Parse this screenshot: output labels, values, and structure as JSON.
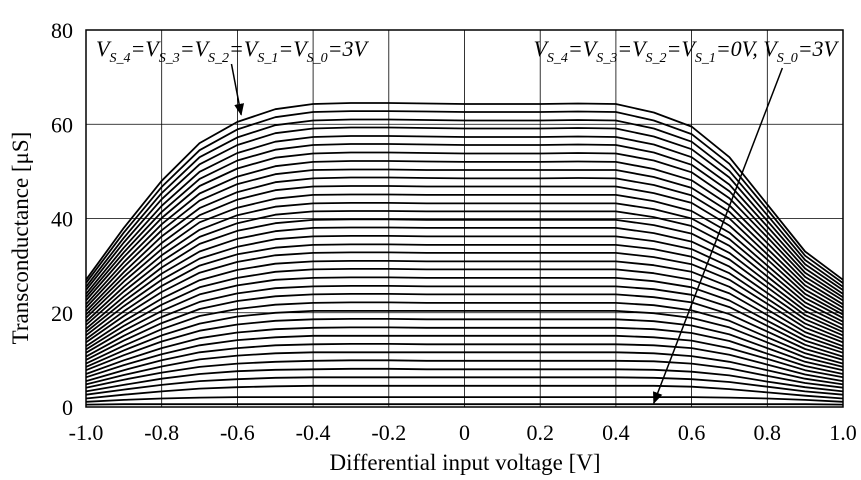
{
  "chart_data": {
    "type": "line",
    "xlabel": "Differential input voltage [V]",
    "ylabel": "Transconductance [μS]",
    "xlim": [
      -1.0,
      1.0
    ],
    "ylim": [
      0,
      80
    ],
    "x_ticks": [
      "-1.0",
      "-0.8",
      "-0.6",
      "-0.4",
      "-0.2",
      "0",
      "0.2",
      "0.4",
      "0.6",
      "0.8",
      "1.0"
    ],
    "x_tick_values": [
      -1.0,
      -0.8,
      -0.6,
      -0.4,
      -0.2,
      0,
      0.2,
      0.4,
      0.6,
      0.8,
      1.0
    ],
    "y_ticks": [
      "0",
      "20",
      "40",
      "60",
      "80"
    ],
    "y_tick_values": [
      0,
      20,
      40,
      60,
      80
    ],
    "grid": true,
    "x": [
      -1.0,
      -0.9,
      -0.8,
      -0.7,
      -0.6,
      -0.5,
      -0.4,
      -0.3,
      -0.2,
      -0.1,
      0.0,
      0.1,
      0.2,
      0.3,
      0.4,
      0.5,
      0.6,
      0.7,
      0.8,
      0.9,
      1.0
    ],
    "series": [
      {
        "values": [
          27.0,
          38.0,
          48.0,
          56.0,
          60.5,
          63.2,
          64.3,
          64.5,
          64.5,
          64.4,
          64.3,
          64.3,
          64.3,
          64.4,
          64.3,
          62.5,
          59.5,
          53.0,
          43.0,
          33.0,
          27.0
        ]
      },
      {
        "values": [
          26.3,
          37.0,
          46.7,
          54.5,
          58.9,
          61.5,
          62.6,
          62.8,
          62.8,
          62.7,
          62.6,
          62.6,
          62.6,
          62.7,
          62.6,
          60.8,
          57.9,
          51.6,
          41.9,
          32.1,
          26.3
        ]
      },
      {
        "values": [
          25.5,
          35.9,
          45.4,
          53.0,
          57.2,
          59.8,
          60.8,
          61.0,
          61.0,
          60.9,
          60.8,
          60.8,
          60.8,
          60.9,
          60.8,
          59.1,
          56.3,
          50.1,
          40.7,
          31.2,
          25.5
        ]
      },
      {
        "values": [
          24.8,
          34.9,
          44.1,
          51.5,
          55.6,
          58.1,
          59.1,
          59.3,
          59.3,
          59.2,
          59.1,
          59.1,
          59.1,
          59.2,
          59.1,
          57.4,
          54.7,
          48.7,
          39.5,
          30.3,
          24.8
        ]
      },
      {
        "values": [
          24.0,
          33.8,
          42.7,
          49.9,
          53.9,
          56.3,
          57.3,
          57.5,
          57.5,
          57.4,
          57.3,
          57.3,
          57.3,
          57.4,
          57.3,
          55.7,
          53.0,
          47.2,
          38.3,
          29.4,
          24.0
        ]
      },
      {
        "values": [
          23.3,
          32.8,
          41.4,
          48.4,
          52.3,
          54.6,
          55.6,
          55.8,
          55.8,
          55.7,
          55.6,
          55.6,
          55.6,
          55.7,
          55.6,
          54.0,
          51.4,
          45.8,
          37.1,
          28.5,
          23.3
        ]
      },
      {
        "values": [
          22.6,
          31.8,
          40.1,
          46.9,
          50.6,
          52.9,
          53.8,
          54.0,
          54.0,
          53.9,
          53.8,
          53.8,
          53.8,
          53.9,
          53.8,
          52.3,
          49.8,
          44.3,
          36.0,
          27.6,
          22.6
        ]
      },
      {
        "values": [
          21.8,
          30.7,
          38.8,
          45.3,
          48.9,
          51.1,
          52.0,
          52.2,
          52.2,
          52.1,
          52.0,
          52.0,
          52.0,
          52.1,
          52.0,
          50.5,
          48.1,
          42.8,
          34.8,
          26.7,
          21.8
        ]
      },
      {
        "values": [
          21.1,
          29.7,
          37.5,
          43.8,
          47.3,
          49.4,
          50.3,
          50.4,
          50.4,
          50.3,
          50.3,
          50.3,
          50.3,
          50.3,
          50.3,
          48.8,
          46.5,
          41.4,
          33.6,
          25.8,
          21.1
        ]
      },
      {
        "values": [
          20.3,
          28.6,
          36.2,
          42.2,
          45.6,
          47.7,
          48.5,
          48.7,
          48.7,
          48.6,
          48.5,
          48.5,
          48.5,
          48.6,
          48.5,
          47.1,
          44.9,
          40.0,
          32.4,
          24.9,
          20.3
        ]
      },
      {
        "values": [
          19.6,
          27.6,
          34.8,
          40.7,
          44.0,
          46.0,
          46.8,
          46.9,
          46.9,
          46.8,
          46.8,
          46.8,
          46.8,
          46.8,
          46.8,
          45.4,
          43.3,
          38.5,
          31.3,
          24.0,
          19.6
        ]
      },
      {
        "values": [
          18.9,
          26.6,
          33.5,
          39.2,
          42.3,
          44.2,
          45.0,
          45.1,
          45.1,
          45.0,
          45.0,
          45.0,
          45.0,
          45.0,
          45.0,
          43.7,
          41.6,
          37.0,
          30.0,
          23.1,
          18.9
        ]
      },
      {
        "values": [
          18.1,
          25.5,
          32.2,
          37.6,
          40.7,
          42.5,
          43.2,
          43.3,
          43.3,
          43.2,
          43.2,
          43.2,
          43.2,
          43.2,
          43.2,
          42.0,
          40.0,
          35.6,
          28.9,
          22.2,
          18.1
        ]
      },
      {
        "values": [
          17.4,
          24.5,
          30.9,
          36.1,
          39.0,
          40.8,
          41.5,
          41.6,
          41.6,
          41.5,
          41.5,
          41.5,
          41.5,
          41.5,
          41.5,
          40.3,
          38.4,
          34.2,
          27.7,
          21.3,
          17.4
        ]
      },
      {
        "values": [
          16.6,
          23.4,
          29.6,
          34.6,
          37.4,
          39.0,
          39.7,
          39.8,
          39.8,
          39.7,
          39.7,
          39.7,
          39.7,
          39.7,
          39.7,
          38.6,
          36.8,
          32.7,
          26.5,
          20.4,
          16.6
        ]
      },
      {
        "values": [
          15.9,
          22.4,
          28.3,
          33.0,
          35.7,
          37.3,
          38.0,
          38.1,
          38.1,
          38.0,
          38.0,
          38.0,
          38.0,
          38.0,
          38.0,
          36.9,
          35.1,
          31.3,
          25.4,
          19.5,
          15.9
        ]
      },
      {
        "values": [
          15.2,
          21.4,
          27.0,
          31.5,
          34.0,
          35.6,
          36.2,
          36.3,
          36.3,
          36.2,
          36.2,
          36.2,
          36.2,
          36.2,
          36.2,
          35.2,
          33.5,
          29.8,
          24.2,
          18.6,
          15.2
        ]
      },
      {
        "values": [
          14.4,
          20.3,
          25.7,
          30.0,
          32.4,
          33.8,
          34.4,
          34.5,
          34.5,
          34.4,
          34.4,
          34.4,
          34.4,
          34.4,
          34.4,
          33.5,
          31.9,
          28.4,
          23.0,
          17.7,
          14.4
        ]
      },
      {
        "values": [
          13.7,
          19.3,
          24.4,
          28.5,
          30.8,
          32.2,
          32.7,
          32.8,
          32.8,
          32.7,
          32.7,
          32.7,
          32.7,
          32.7,
          32.7,
          31.8,
          30.3,
          27.0,
          21.9,
          16.8,
          13.7
        ]
      },
      {
        "values": [
          12.9,
          18.2,
          23.0,
          26.9,
          29.1,
          30.4,
          30.9,
          31.0,
          31.0,
          30.9,
          30.9,
          30.9,
          30.9,
          30.9,
          30.9,
          30.1,
          28.7,
          25.5,
          20.7,
          15.9,
          12.9
        ]
      },
      {
        "values": [
          12.2,
          17.2,
          21.7,
          25.4,
          27.4,
          28.7,
          29.2,
          29.3,
          29.3,
          29.2,
          29.2,
          29.2,
          29.2,
          29.2,
          29.2,
          28.4,
          27.0,
          24.1,
          19.5,
          15.0,
          12.2
        ]
      },
      {
        "values": [
          11.5,
          16.2,
          20.4,
          23.9,
          25.8,
          27.0,
          27.4,
          27.5,
          27.5,
          27.4,
          27.4,
          27.4,
          27.4,
          27.4,
          27.4,
          26.7,
          25.4,
          22.6,
          18.3,
          14.1,
          11.5
        ]
      },
      {
        "values": [
          10.7,
          15.1,
          19.1,
          22.3,
          24.1,
          25.2,
          25.6,
          25.7,
          25.7,
          25.6,
          25.6,
          25.6,
          25.6,
          25.6,
          25.6,
          25.0,
          23.8,
          21.2,
          17.2,
          13.2,
          10.7
        ]
      },
      {
        "values": [
          10.0,
          14.1,
          17.8,
          20.8,
          22.5,
          23.5,
          23.9,
          24.0,
          24.0,
          23.9,
          23.9,
          23.9,
          23.9,
          23.9,
          23.9,
          23.3,
          22.2,
          19.7,
          16.0,
          12.3,
          10.0
        ]
      },
      {
        "values": [
          9.2,
          13.0,
          16.5,
          19.3,
          20.8,
          21.7,
          22.1,
          22.2,
          22.2,
          22.1,
          22.1,
          22.1,
          22.1,
          22.1,
          22.1,
          21.6,
          20.5,
          18.3,
          14.8,
          11.4,
          9.2
        ]
      },
      {
        "values": [
          8.5,
          12.0,
          15.2,
          17.7,
          19.2,
          20.0,
          20.4,
          20.4,
          20.4,
          20.4,
          20.4,
          20.4,
          20.4,
          20.4,
          20.4,
          19.9,
          18.9,
          16.9,
          13.7,
          10.5,
          8.5
        ]
      },
      {
        "values": [
          7.8,
          11.0,
          13.9,
          16.2,
          17.5,
          18.3,
          18.6,
          18.7,
          18.7,
          18.6,
          18.6,
          18.6,
          18.6,
          18.6,
          18.6,
          18.2,
          17.3,
          15.4,
          12.5,
          9.6,
          7.8
        ]
      },
      {
        "values": [
          7.0,
          9.9,
          12.5,
          14.6,
          15.8,
          16.5,
          16.8,
          16.9,
          16.9,
          16.8,
          16.8,
          16.8,
          16.8,
          16.8,
          16.8,
          16.5,
          15.7,
          14.0,
          11.3,
          8.7,
          7.0
        ]
      },
      {
        "values": [
          6.3,
          8.9,
          11.2,
          13.1,
          14.2,
          14.8,
          15.1,
          15.1,
          15.1,
          15.1,
          15.1,
          15.1,
          15.1,
          15.1,
          15.1,
          14.8,
          14.1,
          12.5,
          10.2,
          7.8,
          6.3
        ]
      },
      {
        "values": [
          5.5,
          7.8,
          9.9,
          11.6,
          12.5,
          13.1,
          13.3,
          13.4,
          13.4,
          13.3,
          13.3,
          13.3,
          13.3,
          13.3,
          13.3,
          13.1,
          12.5,
          11.1,
          9.0,
          6.9,
          5.5
        ]
      },
      {
        "values": [
          4.8,
          6.8,
          8.6,
          10.1,
          10.9,
          11.4,
          11.6,
          11.6,
          11.6,
          11.6,
          11.6,
          11.6,
          11.6,
          11.6,
          11.6,
          11.4,
          10.8,
          9.6,
          7.8,
          6.0,
          4.8
        ]
      },
      {
        "values": [
          4.1,
          5.8,
          7.3,
          8.5,
          9.2,
          9.6,
          9.8,
          9.9,
          9.9,
          9.8,
          9.8,
          9.8,
          9.8,
          9.8,
          9.8,
          9.7,
          9.2,
          8.2,
          6.6,
          5.1,
          4.1
        ]
      },
      {
        "values": [
          3.3,
          4.7,
          6.0,
          7.0,
          7.6,
          7.9,
          8.0,
          8.1,
          8.1,
          8.0,
          8.0,
          8.0,
          8.0,
          8.0,
          8.0,
          7.9,
          7.5,
          6.7,
          5.4,
          4.2,
          3.3
        ]
      },
      {
        "values": [
          2.6,
          3.7,
          4.7,
          5.5,
          5.9,
          6.2,
          6.3,
          6.3,
          6.3,
          6.3,
          6.3,
          6.3,
          6.3,
          6.3,
          6.3,
          6.2,
          5.9,
          5.3,
          4.3,
          3.3,
          2.6
        ]
      },
      {
        "values": [
          1.8,
          2.6,
          3.3,
          3.9,
          4.2,
          4.4,
          4.5,
          4.5,
          4.5,
          4.5,
          4.5,
          4.5,
          4.5,
          4.5,
          4.5,
          4.5,
          4.3,
          3.8,
          3.1,
          2.4,
          1.8
        ]
      },
      {
        "values": [
          1.1,
          1.5,
          1.8,
          2.0,
          2.1,
          2.1,
          2.1,
          2.1,
          2.1,
          2.1,
          2.1,
          2.1,
          2.1,
          2.1,
          2.1,
          2.1,
          2.1,
          2.0,
          1.8,
          1.5,
          1.1
        ]
      },
      {
        "values": [
          0.5,
          0.6,
          0.6,
          0.6,
          0.6,
          0.6,
          0.6,
          0.6,
          0.6,
          0.6,
          0.6,
          0.6,
          0.6,
          0.6,
          0.6,
          0.6,
          0.6,
          0.6,
          0.6,
          0.6,
          0.5
        ]
      }
    ],
    "annotations": [
      {
        "parts": [
          [
            "V",
            "S_4"
          ],
          [
            "=V",
            "S_3"
          ],
          [
            "=V",
            "S_2"
          ],
          [
            "=V",
            "S_1"
          ],
          [
            "=V",
            "S_0"
          ],
          [
            "=3V",
            ""
          ]
        ],
        "anchor": "top-left",
        "arrow_to": {
          "x": -0.59,
          "y": 62.0
        }
      },
      {
        "parts": [
          [
            "V",
            "S_4"
          ],
          [
            "=V",
            "S_3"
          ],
          [
            "=V",
            "S_2"
          ],
          [
            "=V",
            "S_1"
          ],
          [
            "=0V, V",
            "S_0"
          ],
          [
            "=3V",
            ""
          ]
        ],
        "anchor": "top-right",
        "arrow_to": {
          "x": 0.5,
          "y": 0.8
        }
      }
    ]
  }
}
